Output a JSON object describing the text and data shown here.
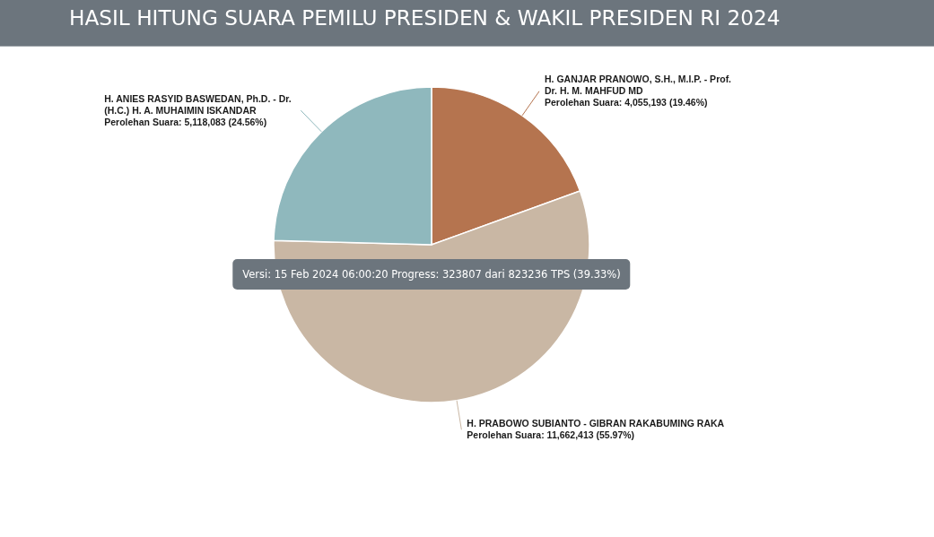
{
  "chart_data": {
    "type": "pie",
    "title": "HASIL HITUNG SUARA PEMILU PRESIDEN & WAKIL PRESIDEN RI 2024",
    "categories": [
      "H. GANJAR PRANOWO, S.H., M.I.P. - Prof. Dr. H. M. MAHFUD MD",
      "H. PRABOWO SUBIANTO - GIBRAN RAKABUMING RAKA",
      "H. ANIES RASYID BASWEDAN, Ph.D. - Dr. (H.C.) H. A. MUHAIMIN ISKANDAR"
    ],
    "values": [
      4055193,
      11662413,
      5118083
    ],
    "colors": [
      "#b5744f",
      "#c9b7a4",
      "#8fb8bd"
    ],
    "value_labels": [
      "Perolehan Suara: 4,055,193 (19.46%)",
      "Perolehan Suara: 11,662,413 (55.97%)",
      "Perolehan Suara: 5,118,083 (24.56%)"
    ],
    "annotations": [
      "Versi: 15 Feb 2024 06:00:20 Progress: 323807 dari 823236 TPS (39.33%)"
    ]
  }
}
